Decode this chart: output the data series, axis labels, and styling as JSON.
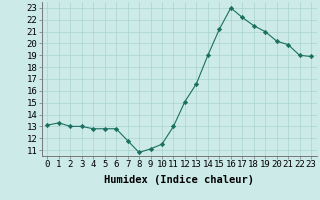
{
  "x": [
    0,
    1,
    2,
    3,
    4,
    5,
    6,
    7,
    8,
    9,
    10,
    11,
    12,
    13,
    14,
    15,
    16,
    17,
    18,
    19,
    20,
    21,
    22,
    23
  ],
  "y": [
    13.1,
    13.3,
    13.0,
    13.0,
    12.8,
    12.8,
    12.8,
    11.8,
    10.8,
    11.1,
    11.5,
    13.0,
    15.1,
    16.6,
    19.0,
    21.2,
    23.0,
    22.2,
    21.5,
    21.0,
    20.2,
    19.9,
    19.0,
    18.9
  ],
  "line_color": "#1a7060",
  "marker": "D",
  "marker_size": 2.2,
  "bg_color": "#cceae8",
  "grid_color": "#aad4d0",
  "xlabel": "Humidex (Indice chaleur)",
  "xlim": [
    -0.5,
    23.5
  ],
  "ylim": [
    10.5,
    23.5
  ],
  "yticks": [
    11,
    12,
    13,
    14,
    15,
    16,
    17,
    18,
    19,
    20,
    21,
    22,
    23
  ],
  "xtick_labels": [
    "0",
    "1",
    "2",
    "3",
    "4",
    "5",
    "6",
    "7",
    "8",
    "9",
    "10",
    "11",
    "12",
    "13",
    "14",
    "15",
    "16",
    "17",
    "18",
    "19",
    "20",
    "21",
    "22",
    "23"
  ],
  "label_fontsize": 7.5,
  "tick_fontsize": 6.5
}
